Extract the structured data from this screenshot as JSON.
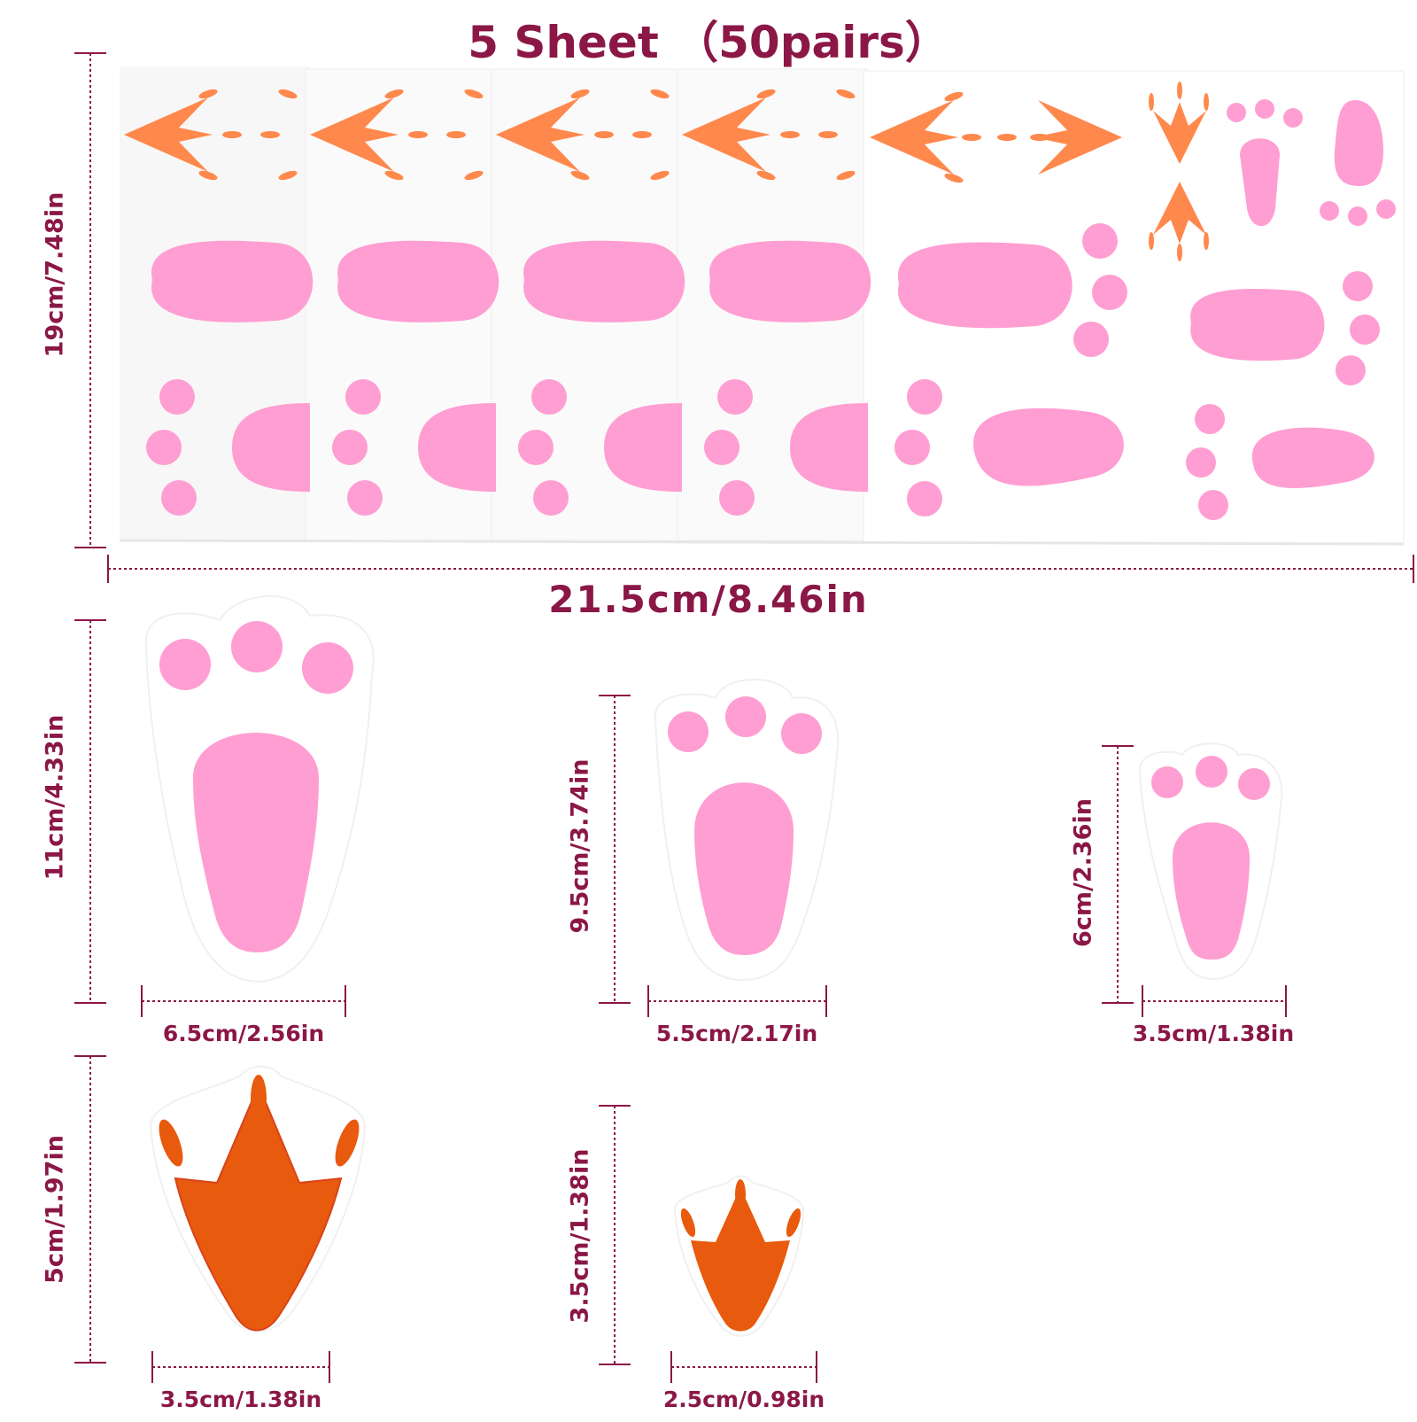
{
  "title": "5 Sheet （50pairs）",
  "sheet": {
    "height_label": "19cm/7.48in",
    "width_label": "21.5cm/8.46in"
  },
  "bunny_feet": [
    {
      "height_label": "11cm/4.33in",
      "width_label": "6.5cm/2.56in"
    },
    {
      "height_label": "9.5cm/3.74in",
      "width_label": "5.5cm/2.17in"
    },
    {
      "height_label": "6cm/2.36in",
      "width_label": "3.5cm/1.38in"
    }
  ],
  "chick_feet": [
    {
      "height_label": "5cm/1.97in",
      "width_label": "3.5cm/1.38in"
    },
    {
      "height_label": "3.5cm/1.38in",
      "width_label": "2.5cm/0.98in"
    }
  ],
  "colors": {
    "label": "#8b1747",
    "pink": "#ff9ed2",
    "orange": "#ff884c",
    "dark_orange": "#e85a0d"
  }
}
